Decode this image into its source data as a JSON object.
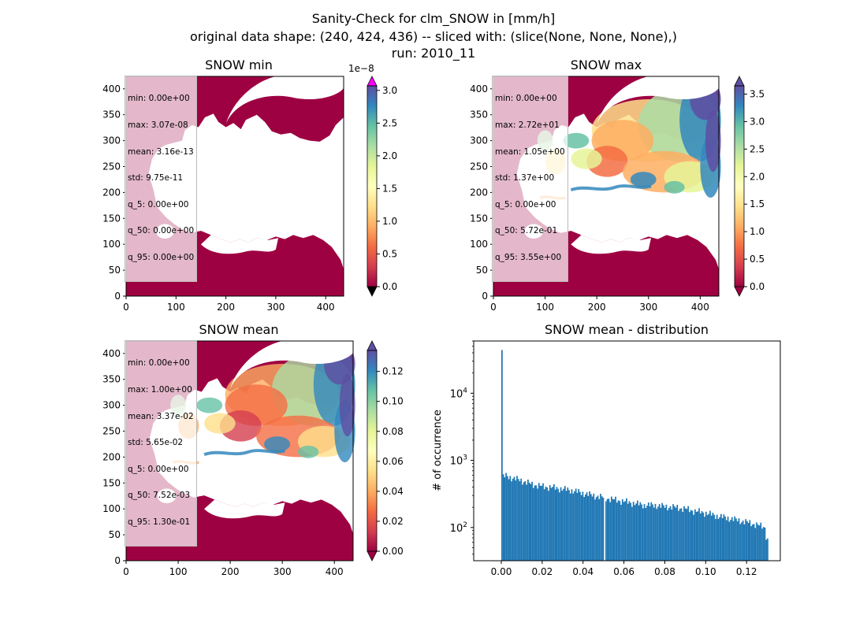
{
  "figure": {
    "title_lines": [
      "Sanity-Check for clm_SNOW in [mm/h]",
      "original data shape: (240, 424, 436) -- sliced with: (slice(None, None, None),)",
      "run: 2010_11"
    ]
  },
  "colors": {
    "map_low": "#9e0142",
    "cbar_stops": [
      "#9e0142",
      "#d53e4f",
      "#f46d43",
      "#fdae61",
      "#fee08b",
      "#ffffbf",
      "#e6f598",
      "#abdda4",
      "#66c2a5",
      "#3288bd",
      "#5e4fa2"
    ],
    "over_color_min": "#ff00ff",
    "under_color": "#000000",
    "histogram_bar": "#1f77b4"
  },
  "chart_data": [
    {
      "type": "heatmap",
      "title": "SNOW min",
      "xlim": [
        0,
        436
      ],
      "ylim": [
        0,
        424
      ],
      "xticks": [
        0,
        100,
        200,
        300,
        400
      ],
      "yticks": [
        0,
        50,
        100,
        150,
        200,
        250,
        300,
        350,
        400
      ],
      "colorbar": {
        "vmin": 0.0,
        "vmax": 3.07,
        "ticks": [
          "0.0",
          "0.5",
          "1.0",
          "1.5",
          "2.0",
          "2.5",
          "3.0"
        ],
        "tick_values": [
          0,
          0.5,
          1,
          1.5,
          2,
          2.5,
          3
        ],
        "offset_text": "1e−8",
        "extend": "both"
      },
      "stats": [
        "min: 0.00e+00",
        "max: 3.07e-08",
        "mean: 3.16e-13",
        "std: 9.75e-11",
        "q_5: 0.00e+00",
        "q_50: 0.00e+00",
        "q_95: 0.00e+00"
      ]
    },
    {
      "type": "heatmap",
      "title": "SNOW max",
      "xlim": [
        0,
        436
      ],
      "ylim": [
        0,
        424
      ],
      "xticks": [
        0,
        100,
        200,
        300,
        400
      ],
      "yticks": [
        0,
        50,
        100,
        150,
        200,
        250,
        300,
        350,
        400
      ],
      "colorbar": {
        "vmin": 0.0,
        "vmax": 3.65,
        "ticks": [
          "0.0",
          "0.5",
          "1.0",
          "1.5",
          "2.0",
          "2.5",
          "3.0",
          "3.5"
        ],
        "tick_values": [
          0,
          0.5,
          1,
          1.5,
          2,
          2.5,
          3,
          3.5
        ],
        "offset_text": "",
        "extend": "both"
      },
      "stats": [
        "min: 0.00e+00",
        "max: 2.72e+01",
        "mean: 1.05e+00",
        "std: 1.37e+00",
        "q_5: 0.00e+00",
        "q_50: 5.72e-01",
        "q_95: 3.55e+00"
      ]
    },
    {
      "type": "heatmap",
      "title": "SNOW mean",
      "xlim": [
        0,
        436
      ],
      "ylim": [
        0,
        424
      ],
      "xticks": [
        0,
        100,
        200,
        300,
        400
      ],
      "yticks": [
        0,
        50,
        100,
        150,
        200,
        250,
        300,
        350,
        400
      ],
      "colorbar": {
        "vmin": 0.0,
        "vmax": 0.134,
        "ticks": [
          "0.00",
          "0.02",
          "0.04",
          "0.06",
          "0.08",
          "0.10",
          "0.12"
        ],
        "tick_values": [
          0,
          0.02,
          0.04,
          0.06,
          0.08,
          0.1,
          0.12
        ],
        "offset_text": "",
        "extend": "both"
      },
      "stats": [
        "min: 0.00e+00",
        "max: 1.00e+00",
        "mean: 3.37e-02",
        "std: 5.65e-02",
        "q_5: 0.00e+00",
        "q_50: 7.52e-03",
        "q_95: 1.30e-01"
      ]
    },
    {
      "type": "bar",
      "title": "SNOW mean - distribution",
      "ylabel": "# of occurrence",
      "xlabel": "",
      "yscale": "log",
      "xlim": [
        -0.0135,
        0.1365
      ],
      "ylim": [
        32,
        60000
      ],
      "xticks": [
        "0.00",
        "0.02",
        "0.04",
        "0.06",
        "0.08",
        "0.10",
        "0.12"
      ],
      "xtick_values": [
        0,
        0.02,
        0.04,
        0.06,
        0.08,
        0.1,
        0.12
      ],
      "yticks": [
        {
          "value": 100,
          "base": "10",
          "exp": "2"
        },
        {
          "value": 1000,
          "base": "10",
          "exp": "3"
        },
        {
          "value": 10000,
          "base": "10",
          "exp": "4"
        }
      ],
      "bin_start": 0.0,
      "bin_width": 0.00067,
      "first_bin_count": 44000,
      "keypoints": [
        [
          0.0007,
          560
        ],
        [
          0.002,
          590
        ],
        [
          0.006,
          540
        ],
        [
          0.01,
          500
        ],
        [
          0.015,
          440
        ],
        [
          0.02,
          410
        ],
        [
          0.025,
          395
        ],
        [
          0.03,
          375
        ],
        [
          0.035,
          355
        ],
        [
          0.04,
          325
        ],
        [
          0.045,
          300
        ],
        [
          0.05,
          280
        ],
        [
          0.055,
          260
        ],
        [
          0.06,
          245
        ],
        [
          0.065,
          230
        ],
        [
          0.07,
          215
        ],
        [
          0.075,
          215
        ],
        [
          0.08,
          205
        ],
        [
          0.085,
          200
        ],
        [
          0.09,
          190
        ],
        [
          0.095,
          175
        ],
        [
          0.1,
          165
        ],
        [
          0.105,
          150
        ],
        [
          0.11,
          140
        ],
        [
          0.115,
          130
        ],
        [
          0.12,
          120
        ],
        [
          0.125,
          110
        ],
        [
          0.129,
          100
        ],
        [
          0.13,
          65
        ]
      ]
    }
  ]
}
